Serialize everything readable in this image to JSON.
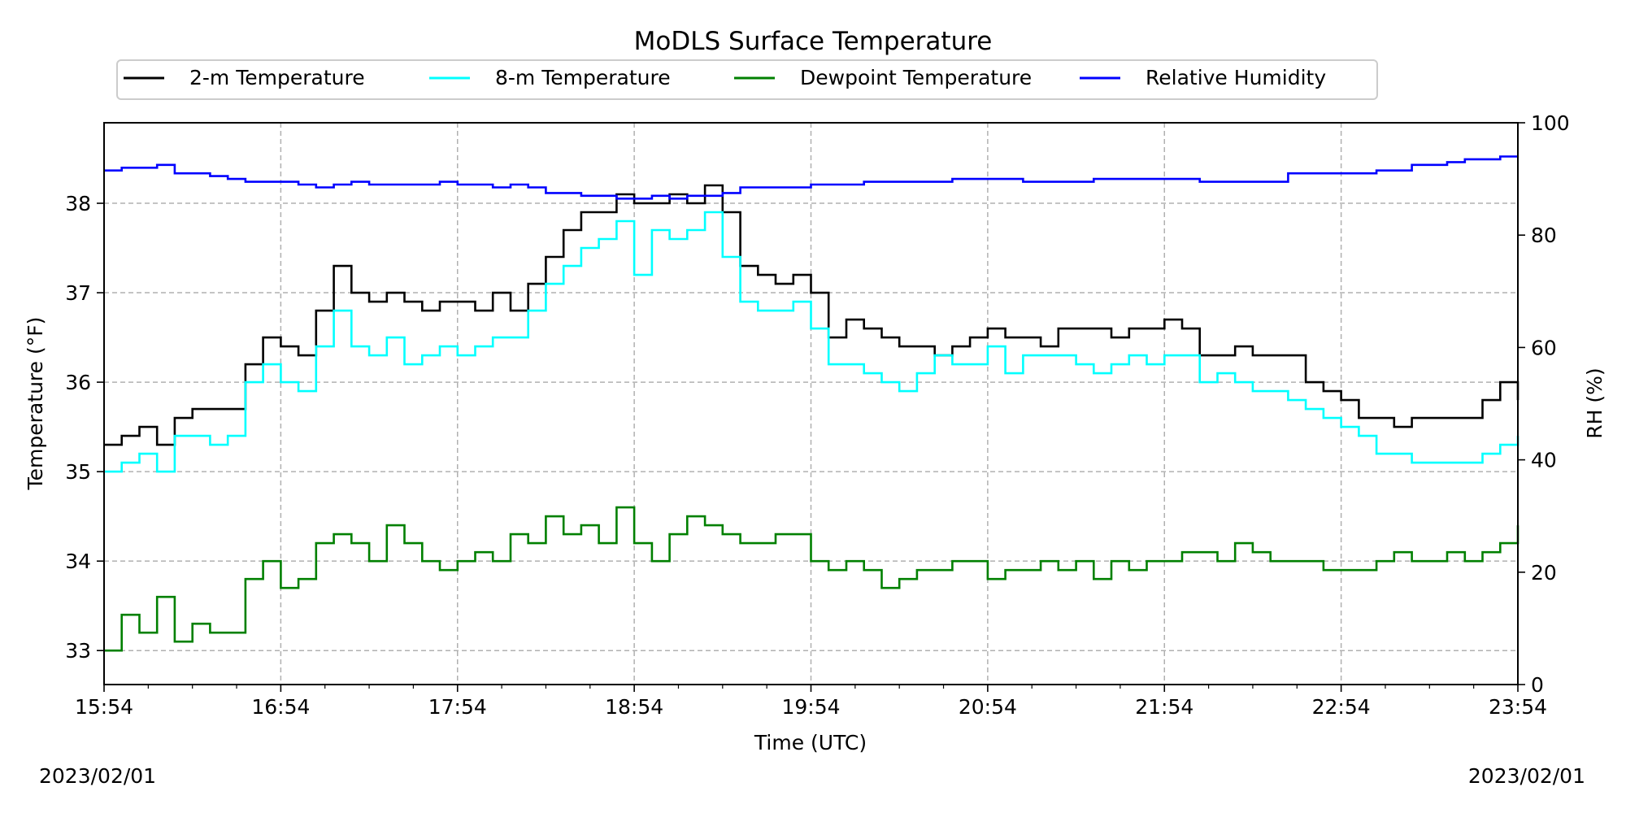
{
  "chart_data": {
    "type": "line",
    "title": "MoDLS Surface Temperature",
    "xlabel": "Time (UTC)",
    "ylabel_left": "Temperature (°F)",
    "ylabel_right": "RH (%)",
    "x_ticks": [
      "15:54",
      "16:54",
      "17:54",
      "18:54",
      "19:54",
      "20:54",
      "21:54",
      "22:54",
      "23:54"
    ],
    "x_range_hours": [
      0,
      8
    ],
    "ylim_left": [
      32.62,
      38.9
    ],
    "yticks_left": [
      33,
      34,
      35,
      36,
      37,
      38
    ],
    "ylim_right": [
      0,
      100
    ],
    "yticks_right": [
      0,
      20,
      40,
      60,
      80,
      100
    ],
    "grid": true,
    "legend_placement": "top, above plot",
    "date_left": "2023/02/01",
    "date_right": "2023/02/01",
    "series": [
      {
        "name": "2-m Temperature",
        "color": "#000000",
        "axis": "left",
        "x": [
          0,
          0.1,
          0.2,
          0.3,
          0.4,
          0.5,
          0.6,
          0.7,
          0.8,
          0.9,
          1.0,
          1.1,
          1.2,
          1.3,
          1.4,
          1.5,
          1.6,
          1.7,
          1.8,
          1.9,
          2.0,
          2.1,
          2.2,
          2.3,
          2.4,
          2.5,
          2.6,
          2.7,
          2.8,
          2.9,
          3.0,
          3.1,
          3.2,
          3.3,
          3.4,
          3.5,
          3.6,
          3.7,
          3.8,
          3.9,
          4.0,
          4.1,
          4.2,
          4.3,
          4.4,
          4.5,
          4.6,
          4.7,
          4.8,
          4.9,
          5.0,
          5.1,
          5.2,
          5.3,
          5.4,
          5.5,
          5.6,
          5.7,
          5.8,
          5.9,
          6.0,
          6.1,
          6.2,
          6.3,
          6.4,
          6.5,
          6.6,
          6.7,
          6.8,
          6.9,
          7.0,
          7.1,
          7.2,
          7.3,
          7.4,
          7.5,
          7.6,
          7.7,
          7.8,
          7.9,
          8.0
        ],
        "y": [
          35.3,
          35.4,
          35.5,
          35.3,
          35.6,
          35.7,
          35.7,
          35.7,
          36.2,
          36.5,
          36.4,
          36.3,
          36.8,
          37.3,
          37.0,
          36.9,
          37.0,
          36.9,
          36.8,
          36.9,
          36.9,
          36.8,
          37.0,
          36.8,
          37.1,
          37.4,
          37.7,
          37.9,
          37.9,
          38.1,
          38.0,
          38.0,
          38.1,
          38.0,
          38.2,
          37.9,
          37.3,
          37.2,
          37.1,
          37.2,
          37.0,
          36.5,
          36.7,
          36.6,
          36.5,
          36.4,
          36.4,
          36.3,
          36.4,
          36.5,
          36.6,
          36.5,
          36.5,
          36.4,
          36.6,
          36.6,
          36.6,
          36.5,
          36.6,
          36.6,
          36.7,
          36.6,
          36.3,
          36.3,
          36.4,
          36.3,
          36.3,
          36.3,
          36.0,
          35.9,
          35.8,
          35.6,
          35.6,
          35.5,
          35.6,
          35.6,
          35.6,
          35.6,
          35.8,
          36.0,
          35.8
        ]
      },
      {
        "name": "8-m Temperature",
        "color": "#00ffff",
        "axis": "left",
        "x": [
          0,
          0.1,
          0.2,
          0.3,
          0.4,
          0.5,
          0.6,
          0.7,
          0.8,
          0.9,
          1.0,
          1.1,
          1.2,
          1.3,
          1.4,
          1.5,
          1.6,
          1.7,
          1.8,
          1.9,
          2.0,
          2.1,
          2.2,
          2.3,
          2.4,
          2.5,
          2.6,
          2.7,
          2.8,
          2.9,
          3.0,
          3.1,
          3.2,
          3.3,
          3.4,
          3.5,
          3.6,
          3.7,
          3.8,
          3.9,
          4.0,
          4.1,
          4.2,
          4.3,
          4.4,
          4.5,
          4.6,
          4.7,
          4.8,
          4.9,
          5.0,
          5.1,
          5.2,
          5.3,
          5.4,
          5.5,
          5.6,
          5.7,
          5.8,
          5.9,
          6.0,
          6.1,
          6.2,
          6.3,
          6.4,
          6.5,
          6.6,
          6.7,
          6.8,
          6.9,
          7.0,
          7.1,
          7.2,
          7.3,
          7.4,
          7.5,
          7.6,
          7.7,
          7.8,
          7.9,
          8.0
        ],
        "y": [
          35.0,
          35.1,
          35.2,
          35.0,
          35.4,
          35.4,
          35.3,
          35.4,
          36.0,
          36.2,
          36.0,
          35.9,
          36.4,
          36.8,
          36.4,
          36.3,
          36.5,
          36.2,
          36.3,
          36.4,
          36.3,
          36.4,
          36.5,
          36.5,
          36.8,
          37.1,
          37.3,
          37.5,
          37.6,
          37.8,
          37.2,
          37.7,
          37.6,
          37.7,
          37.9,
          37.4,
          36.9,
          36.8,
          36.8,
          36.9,
          36.6,
          36.2,
          36.2,
          36.1,
          36.0,
          35.9,
          36.1,
          36.3,
          36.2,
          36.2,
          36.4,
          36.1,
          36.3,
          36.3,
          36.3,
          36.2,
          36.1,
          36.2,
          36.3,
          36.2,
          36.3,
          36.3,
          36.0,
          36.1,
          36.0,
          35.9,
          35.9,
          35.8,
          35.7,
          35.6,
          35.5,
          35.4,
          35.2,
          35.2,
          35.1,
          35.1,
          35.1,
          35.1,
          35.2,
          35.3,
          35.4
        ]
      },
      {
        "name": "Dewpoint Temperature",
        "color": "#008000",
        "axis": "left",
        "x": [
          0,
          0.1,
          0.2,
          0.3,
          0.4,
          0.5,
          0.6,
          0.7,
          0.8,
          0.9,
          1.0,
          1.1,
          1.2,
          1.3,
          1.4,
          1.5,
          1.6,
          1.7,
          1.8,
          1.9,
          2.0,
          2.1,
          2.2,
          2.3,
          2.4,
          2.5,
          2.6,
          2.7,
          2.8,
          2.9,
          3.0,
          3.1,
          3.2,
          3.3,
          3.4,
          3.5,
          3.6,
          3.7,
          3.8,
          3.9,
          4.0,
          4.1,
          4.2,
          4.3,
          4.4,
          4.5,
          4.6,
          4.7,
          4.8,
          4.9,
          5.0,
          5.1,
          5.2,
          5.3,
          5.4,
          5.5,
          5.6,
          5.7,
          5.8,
          5.9,
          6.0,
          6.1,
          6.2,
          6.3,
          6.4,
          6.5,
          6.6,
          6.7,
          6.8,
          6.9,
          7.0,
          7.1,
          7.2,
          7.3,
          7.4,
          7.5,
          7.6,
          7.7,
          7.8,
          7.9,
          8.0
        ],
        "y": [
          33.0,
          33.4,
          33.2,
          33.6,
          33.1,
          33.3,
          33.2,
          33.2,
          33.8,
          34.0,
          33.7,
          33.8,
          34.2,
          34.3,
          34.2,
          34.0,
          34.4,
          34.2,
          34.0,
          33.9,
          34.0,
          34.1,
          34.0,
          34.3,
          34.2,
          34.5,
          34.3,
          34.4,
          34.2,
          34.6,
          34.2,
          34.0,
          34.3,
          34.5,
          34.4,
          34.3,
          34.2,
          34.2,
          34.3,
          34.3,
          34.0,
          33.9,
          34.0,
          33.9,
          33.7,
          33.8,
          33.9,
          33.9,
          34.0,
          34.0,
          33.8,
          33.9,
          33.9,
          34.0,
          33.9,
          34.0,
          33.8,
          34.0,
          33.9,
          34.0,
          34.0,
          34.1,
          34.1,
          34.0,
          34.2,
          34.1,
          34.0,
          34.0,
          34.0,
          33.9,
          33.9,
          33.9,
          34.0,
          34.1,
          34.0,
          34.0,
          34.1,
          34.0,
          34.1,
          34.2,
          34.4
        ]
      },
      {
        "name": "Relative Humidity",
        "color": "#0000ff",
        "axis": "right",
        "x": [
          0,
          0.1,
          0.2,
          0.3,
          0.4,
          0.5,
          0.6,
          0.7,
          0.8,
          0.9,
          1.0,
          1.1,
          1.2,
          1.3,
          1.4,
          1.5,
          1.6,
          1.7,
          1.8,
          1.9,
          2.0,
          2.1,
          2.2,
          2.3,
          2.4,
          2.5,
          2.6,
          2.7,
          2.8,
          2.9,
          3.0,
          3.1,
          3.2,
          3.3,
          3.4,
          3.5,
          3.6,
          3.7,
          3.8,
          3.9,
          4.0,
          4.1,
          4.2,
          4.3,
          4.4,
          4.5,
          4.6,
          4.7,
          4.8,
          4.9,
          5.0,
          5.1,
          5.2,
          5.3,
          5.4,
          5.5,
          5.6,
          5.7,
          5.8,
          5.9,
          6.0,
          6.1,
          6.2,
          6.3,
          6.4,
          6.5,
          6.6,
          6.7,
          6.8,
          6.9,
          7.0,
          7.1,
          7.2,
          7.3,
          7.4,
          7.5,
          7.6,
          7.7,
          7.8,
          7.9,
          8.0
        ],
        "y": [
          91.5,
          92.0,
          92.0,
          92.5,
          91.0,
          91.0,
          90.5,
          90.0,
          89.5,
          89.5,
          89.5,
          89.0,
          88.5,
          89.0,
          89.5,
          89.0,
          89.0,
          89.0,
          89.0,
          89.5,
          89.0,
          89.0,
          88.5,
          89.0,
          88.5,
          87.5,
          87.5,
          87.0,
          87.0,
          86.5,
          86.5,
          87.0,
          86.5,
          87.0,
          87.0,
          87.5,
          88.5,
          88.5,
          88.5,
          88.5,
          89.0,
          89.0,
          89.0,
          89.5,
          89.5,
          89.5,
          89.5,
          89.5,
          90.0,
          90.0,
          90.0,
          90.0,
          89.5,
          89.5,
          89.5,
          89.5,
          90.0,
          90.0,
          90.0,
          90.0,
          90.0,
          90.0,
          89.5,
          89.5,
          89.5,
          89.5,
          89.5,
          91.0,
          91.0,
          91.0,
          91.0,
          91.0,
          91.5,
          91.5,
          92.5,
          92.5,
          93.0,
          93.5,
          93.5,
          94.0,
          94.0
        ]
      }
    ]
  }
}
